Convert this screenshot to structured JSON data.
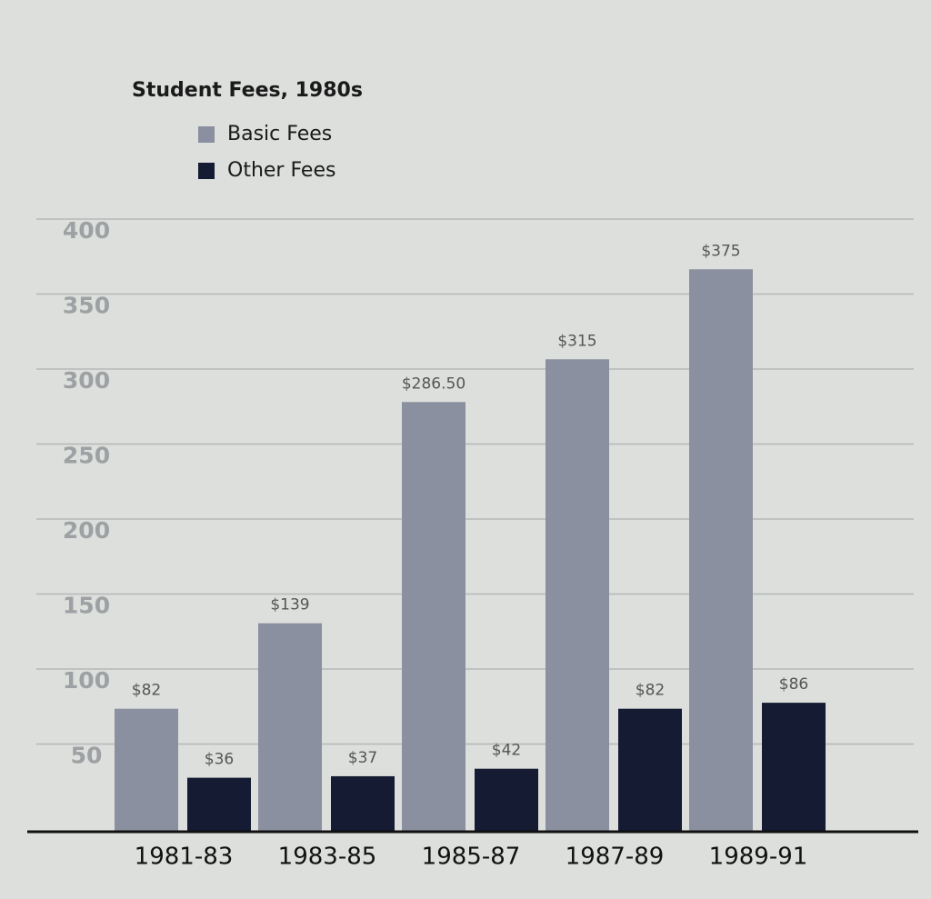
{
  "chart_data": {
    "type": "bar",
    "title": "Student Fees, 1980s",
    "categories": [
      "1981-83",
      "1983-85",
      "1985-87",
      "1987-89",
      "1989-91"
    ],
    "series": [
      {
        "name": "Basic Fees",
        "color": "#8a909f",
        "values": [
          82,
          139,
          286.5,
          315,
          375
        ],
        "value_labels": [
          "$82",
          "$139",
          "$286.50",
          "$315",
          "$375"
        ]
      },
      {
        "name": "Other Fees",
        "color": "#141b32",
        "values": [
          36,
          37,
          42,
          82,
          86
        ],
        "value_labels": [
          "$36",
          "$37",
          "$42",
          "$82",
          "$86"
        ]
      }
    ],
    "ylim": [
      0,
      400
    ],
    "yticks": [
      50,
      100,
      150,
      200,
      250,
      300,
      350,
      400
    ],
    "grid": true
  }
}
